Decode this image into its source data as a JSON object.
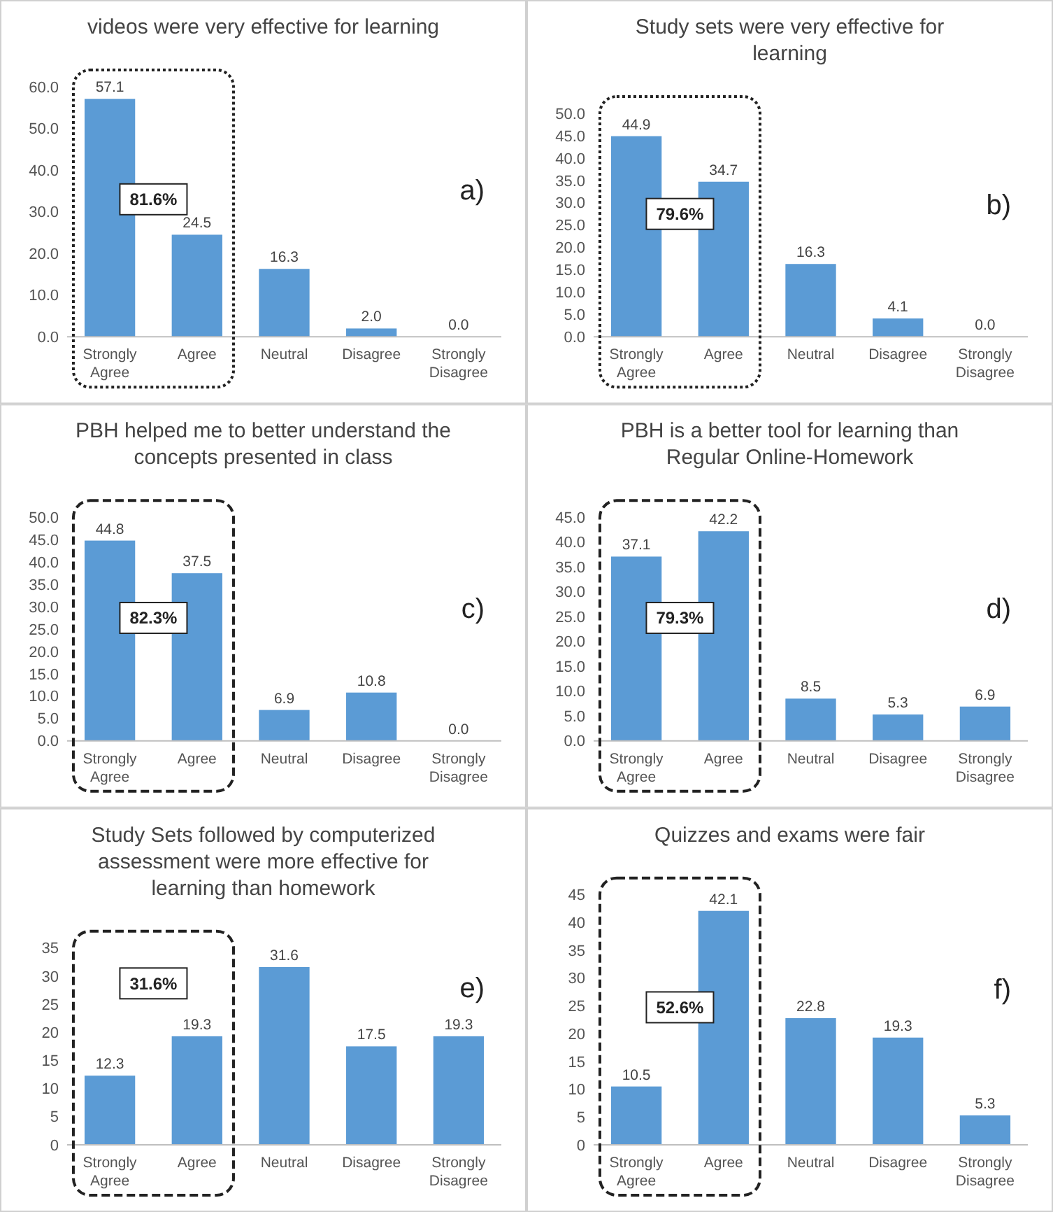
{
  "chart_data": [
    {
      "type": "bar",
      "title": "videos were very effective for learning",
      "categories": [
        "Strongly Agree",
        "Agree",
        "Neutral",
        "Disagree",
        "Strongly Disagree"
      ],
      "values": [
        57.1,
        24.5,
        16.3,
        2.0,
        0.0
      ],
      "color": "#5b9bd5",
      "ylim": [
        0,
        60
      ],
      "yticks": [
        {
          "value": 0,
          "label": "0.0"
        },
        {
          "value": 10,
          "label": "10.0"
        },
        {
          "value": 20,
          "label": "20.0"
        },
        {
          "value": 30,
          "label": "30.0"
        },
        {
          "value": 40,
          "label": "40.0"
        },
        {
          "value": 50,
          "label": "50.0"
        },
        {
          "value": 60,
          "label": "60.0"
        }
      ],
      "value_labels": [
        "57.1",
        "24.5",
        "16.3",
        "2.0",
        "0.0"
      ],
      "annotations": [
        "81.6%",
        "a)"
      ]
    },
    {
      "type": "bar",
      "title": "Study sets were very effective for learning",
      "categories": [
        "Strongly Agree",
        "Agree",
        "Neutral",
        "Disagree",
        "Strongly Disagree"
      ],
      "values": [
        44.9,
        34.7,
        16.3,
        4.1,
        0.0
      ],
      "color": "#5b9bd5",
      "ylim": [
        0,
        50
      ],
      "yticks": [
        {
          "value": 0,
          "label": "0.0"
        },
        {
          "value": 5,
          "label": "5.0"
        },
        {
          "value": 10,
          "label": "10.0"
        },
        {
          "value": 15,
          "label": "15.0"
        },
        {
          "value": 20,
          "label": "20.0"
        },
        {
          "value": 25,
          "label": "25.0"
        },
        {
          "value": 30,
          "label": "30.0"
        },
        {
          "value": 35,
          "label": "35.0"
        },
        {
          "value": 40,
          "label": "40.0"
        },
        {
          "value": 45,
          "label": "45.0"
        },
        {
          "value": 50,
          "label": "50.0"
        }
      ],
      "value_labels": [
        "44.9",
        "34.7",
        "16.3",
        "4.1",
        "0.0"
      ],
      "annotations": [
        "79.6%",
        "b)"
      ]
    },
    {
      "type": "bar",
      "title": "PBH helped me to better  understand the concepts presented in class",
      "categories": [
        "Strongly Agree",
        "Agree",
        "Neutral",
        "Disagree",
        "Strongly Disagree"
      ],
      "values": [
        44.8,
        37.5,
        6.9,
        10.8,
        0.0
      ],
      "color": "#5b9bd5",
      "ylim": [
        0,
        50
      ],
      "yticks": [
        {
          "value": 0,
          "label": "0.0"
        },
        {
          "value": 5,
          "label": "5.0"
        },
        {
          "value": 10,
          "label": "10.0"
        },
        {
          "value": 15,
          "label": "15.0"
        },
        {
          "value": 20,
          "label": "20.0"
        },
        {
          "value": 25,
          "label": "25.0"
        },
        {
          "value": 30,
          "label": "30.0"
        },
        {
          "value": 35,
          "label": "35.0"
        },
        {
          "value": 40,
          "label": "40.0"
        },
        {
          "value": 45,
          "label": "45.0"
        },
        {
          "value": 50,
          "label": "50.0"
        }
      ],
      "value_labels": [
        "44.8",
        "37.5",
        "6.9",
        "10.8",
        "0.0"
      ],
      "annotations": [
        "82.3%",
        "c)"
      ]
    },
    {
      "type": "bar",
      "title": "PBH is a better tool for learning than Regular Online-Homework",
      "categories": [
        "Strongly Agree",
        "Agree",
        "Neutral",
        "Disagree",
        "Strongly Disagree"
      ],
      "values": [
        37.1,
        42.2,
        8.5,
        5.3,
        6.9
      ],
      "color": "#5b9bd5",
      "ylim": [
        0,
        45
      ],
      "yticks": [
        {
          "value": 0,
          "label": "0.0"
        },
        {
          "value": 5,
          "label": "5.0"
        },
        {
          "value": 10,
          "label": "10.0"
        },
        {
          "value": 15,
          "label": "15.0"
        },
        {
          "value": 20,
          "label": "20.0"
        },
        {
          "value": 25,
          "label": "25.0"
        },
        {
          "value": 30,
          "label": "30.0"
        },
        {
          "value": 35,
          "label": "35.0"
        },
        {
          "value": 40,
          "label": "40.0"
        },
        {
          "value": 45,
          "label": "45.0"
        }
      ],
      "value_labels": [
        "37.1",
        "42.2",
        "8.5",
        "5.3",
        "6.9"
      ],
      "annotations": [
        "79.3%",
        "d)"
      ]
    },
    {
      "type": "bar",
      "title": "Study Sets followed by computerized assessment were more effective for learning than homework",
      "categories": [
        "Strongly Agree",
        "Agree",
        "Neutral",
        "Disagree",
        "Strongly Disagree"
      ],
      "values": [
        12.3,
        19.3,
        31.6,
        17.5,
        19.3
      ],
      "color": "#5b9bd5",
      "ylim": [
        0,
        35
      ],
      "yticks": [
        0,
        5,
        10,
        15,
        20,
        25,
        30,
        35
      ],
      "value_labels": [
        "12.3",
        "19.3",
        "31.6",
        "17.5",
        "19.3"
      ],
      "annotations": [
        "31.6%",
        "e)"
      ]
    },
    {
      "type": "bar",
      "title": "Quizzes and exams were fair",
      "categories": [
        "Strongly Agree",
        "Agree",
        "Neutral",
        "Disagree",
        "Strongly Disagree"
      ],
      "values": [
        10.5,
        42.1,
        22.8,
        19.3,
        5.3
      ],
      "color": "#5b9bd5",
      "ylim": [
        0,
        45
      ],
      "yticks": [
        0,
        5,
        10,
        15,
        20,
        25,
        30,
        35,
        40,
        45
      ],
      "value_labels": [
        "10.5",
        "42.1",
        "22.8",
        "19.3",
        "5.3"
      ],
      "annotations": [
        "52.6%",
        "f)"
      ]
    }
  ]
}
